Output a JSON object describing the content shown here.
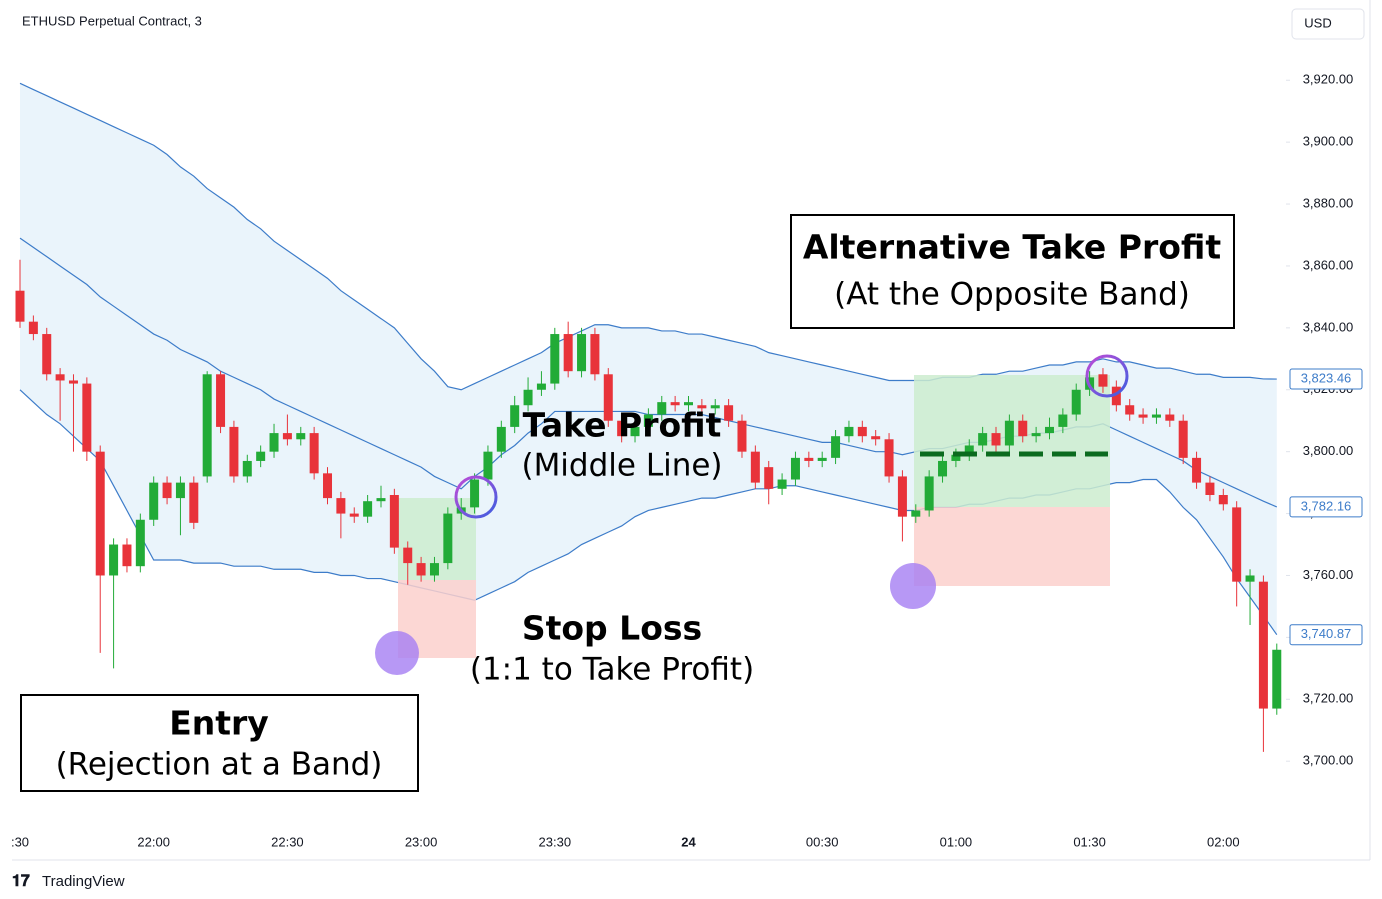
{
  "chart_data": {
    "type": "candlestick",
    "title": "ETHUSD Perpetual Contract, 3",
    "currency": "USD",
    "footer": "TradingView",
    "categories": [
      ":30",
      null,
      null,
      null,
      null,
      null,
      null,
      null,
      null,
      null,
      "22:00",
      null,
      null,
      null,
      null,
      null,
      null,
      null,
      null,
      null,
      "22:30",
      null,
      null,
      null,
      null,
      null,
      null,
      null,
      null,
      null,
      "23:00",
      null,
      null,
      null,
      null,
      null,
      null,
      null,
      null,
      null,
      "23:30",
      null,
      null,
      null,
      null,
      null,
      null,
      null,
      null,
      null,
      "24",
      null,
      null,
      null,
      null,
      null,
      null,
      null,
      null,
      null,
      "00:30",
      null,
      null,
      null,
      null,
      null,
      null,
      null,
      null,
      null,
      "01:00",
      null,
      null,
      null,
      null,
      null,
      null,
      null,
      null,
      null,
      "01:30",
      null,
      null,
      null,
      null,
      null,
      null,
      null,
      null,
      null,
      "02:00",
      null,
      null,
      null,
      null
    ],
    "open": [
      3852,
      3842,
      3838,
      3825,
      3823,
      3822,
      3800,
      3760,
      3770,
      3763,
      3778,
      3790,
      3785,
      3790,
      3792,
      3825,
      3808,
      3792,
      3797,
      3800,
      3806,
      3804,
      3806,
      3793,
      3785,
      3780,
      3779,
      3784,
      3786,
      3769,
      3764,
      3760,
      3764,
      3780,
      3782,
      3791,
      3800,
      3808,
      3815,
      3820,
      3822,
      3838,
      3826,
      3838,
      3825,
      3810,
      3805,
      3808,
      3812,
      3816,
      3815,
      3815,
      3814,
      3815,
      3810,
      3800,
      3795,
      3788,
      3791,
      3798,
      3797,
      3798,
      3805,
      3808,
      3805,
      3804,
      3792,
      3779,
      3781,
      3792,
      3797,
      3799,
      3802,
      3806,
      3802,
      3810,
      3805,
      3806,
      3808,
      3812,
      3820,
      3825,
      3821,
      3815,
      3812,
      3811,
      3812,
      3810,
      3798,
      3790,
      3786,
      3782,
      3758,
      3758,
      3717
    ],
    "high": [
      3862,
      3844,
      3840,
      3827,
      3825,
      3824,
      3802,
      3772,
      3772,
      3780,
      3792,
      3792,
      3792,
      3792,
      3826,
      3826,
      3810,
      3799,
      3802,
      3809,
      3812,
      3808,
      3808,
      3795,
      3787,
      3782,
      3786,
      3789,
      3788,
      3771,
      3766,
      3766,
      3782,
      3785,
      3793,
      3802,
      3810,
      3818,
      3824,
      3826,
      3840,
      3842,
      3840,
      3840,
      3827,
      3812,
      3810,
      3814,
      3818,
      3818,
      3818,
      3817,
      3817,
      3817,
      3812,
      3802,
      3797,
      3793,
      3800,
      3800,
      3800,
      3807,
      3810,
      3810,
      3807,
      3806,
      3794,
      3783,
      3794,
      3799,
      3801,
      3804,
      3808,
      3808,
      3812,
      3812,
      3808,
      3811,
      3814,
      3822,
      3826,
      3827,
      3823,
      3817,
      3814,
      3814,
      3814,
      3812,
      3800,
      3792,
      3788,
      3784,
      3762,
      3760,
      3738
    ],
    "low": [
      3840,
      3836,
      3823,
      3810,
      3800,
      3797,
      3735,
      3730,
      3761,
      3761,
      3776,
      3783,
      3773,
      3775,
      3790,
      3806,
      3790,
      3790,
      3795,
      3798,
      3802,
      3802,
      3791,
      3783,
      3772,
      3777,
      3777,
      3782,
      3767,
      3757,
      3758,
      3758,
      3762,
      3778,
      3780,
      3789,
      3798,
      3806,
      3813,
      3818,
      3820,
      3824,
      3824,
      3823,
      3808,
      3803,
      3803,
      3806,
      3810,
      3813,
      3813,
      3812,
      3812,
      3808,
      3798,
      3788,
      3783,
      3786,
      3789,
      3795,
      3795,
      3796,
      3803,
      3803,
      3802,
      3790,
      3771,
      3777,
      3779,
      3790,
      3795,
      3797,
      3800,
      3800,
      3800,
      3803,
      3803,
      3804,
      3806,
      3810,
      3818,
      3819,
      3813,
      3810,
      3809,
      3809,
      3808,
      3796,
      3788,
      3784,
      3781,
      3750,
      3744,
      3703,
      3715
    ],
    "close": [
      3842,
      3838,
      3825,
      3823,
      3822,
      3800,
      3760,
      3770,
      3763,
      3778,
      3790,
      3785,
      3790,
      3777,
      3825,
      3808,
      3792,
      3797,
      3800,
      3806,
      3804,
      3806,
      3793,
      3785,
      3780,
      3779,
      3784,
      3785,
      3769,
      3764,
      3760,
      3764,
      3780,
      3782,
      3791,
      3800,
      3808,
      3815,
      3820,
      3822,
      3838,
      3826,
      3838,
      3825,
      3810,
      3805,
      3808,
      3812,
      3816,
      3815,
      3816,
      3814,
      3815,
      3810,
      3800,
      3790,
      3788,
      3791,
      3798,
      3797,
      3798,
      3805,
      3808,
      3805,
      3804,
      3792,
      3779,
      3781,
      3792,
      3797,
      3799,
      3802,
      3806,
      3802,
      3810,
      3805,
      3806,
      3808,
      3812,
      3820,
      3824,
      3821,
      3815,
      3812,
      3811,
      3812,
      3810,
      3798,
      3790,
      3786,
      3783,
      3758,
      3760,
      3717,
      3736
    ],
    "up_color": "#22ab37",
    "down_color": "#e8333a",
    "series": [
      {
        "color": "#3d7cc9",
        "last_label": "3,823.46",
        "values": [
          3919,
          3917,
          3915,
          3913,
          3911,
          3909,
          3907,
          3905,
          3903,
          3901,
          3899,
          3896,
          3892,
          3889,
          3885,
          3882,
          3879,
          3875,
          3872,
          3868,
          3865,
          3862,
          3859,
          3856,
          3852,
          3849,
          3846,
          3843,
          3840,
          3835,
          3830,
          3826,
          3821,
          3820,
          3822,
          3824,
          3826,
          3828,
          3830,
          3832,
          3835,
          3837,
          3839,
          3841,
          3841,
          3840,
          3840,
          3840,
          3839,
          3839,
          3838,
          3838,
          3837,
          3836,
          3835,
          3834,
          3832,
          3831,
          3830,
          3829,
          3828,
          3827,
          3826,
          3825,
          3824,
          3823,
          3823,
          3823,
          3823,
          3824,
          3824,
          3824,
          3825,
          3825,
          3826,
          3826,
          3827,
          3828,
          3828,
          3829,
          3829,
          3830,
          3829,
          3829,
          3828,
          3827,
          3827,
          3826,
          3825,
          3825,
          3824,
          3824,
          3824,
          3823.5,
          3823.46
        ]
      },
      {
        "color": "#3d7cc9",
        "last_label": "3,782.16",
        "values": [
          3869,
          3866,
          3863,
          3860,
          3857,
          3854,
          3850,
          3847,
          3844,
          3841,
          3838,
          3836,
          3833,
          3831,
          3829,
          3826,
          3824,
          3822,
          3820,
          3817,
          3815,
          3813,
          3811,
          3809,
          3807,
          3805,
          3803,
          3801,
          3799,
          3797,
          3795,
          3792,
          3790,
          3788,
          3792,
          3795,
          3799,
          3802,
          3806,
          3809,
          3813,
          3813,
          3813,
          3813,
          3813,
          3813,
          3813,
          3812,
          3812,
          3812,
          3812,
          3812,
          3811,
          3810,
          3809,
          3808,
          3807,
          3806,
          3805,
          3804,
          3803,
          3803,
          3802,
          3801,
          3800,
          3800,
          3799,
          3800,
          3801,
          3801,
          3802,
          3803,
          3803,
          3804,
          3805,
          3805,
          3806,
          3806,
          3807,
          3808,
          3808,
          3809,
          3807,
          3805,
          3803,
          3801,
          3799,
          3797,
          3794,
          3792,
          3790,
          3788,
          3786,
          3784,
          3782.16
        ]
      },
      {
        "color": "#3d7cc9",
        "last_label": "3,740.87",
        "values": [
          3820,
          3816,
          3812,
          3809,
          3805,
          3801,
          3797,
          3789,
          3781,
          3773,
          3765,
          3765,
          3765,
          3764,
          3764,
          3764,
          3763,
          3763,
          3763,
          3762,
          3762,
          3762,
          3761,
          3761,
          3760,
          3760,
          3759,
          3759,
          3758,
          3757,
          3756,
          3755,
          3754,
          3753,
          3752,
          3754,
          3756,
          3758,
          3761,
          3763,
          3765,
          3767,
          3770,
          3772,
          3774,
          3776,
          3779,
          3781,
          3782,
          3783,
          3784,
          3785,
          3785,
          3786,
          3787,
          3788,
          3788,
          3789,
          3789,
          3788,
          3787,
          3786,
          3785,
          3784,
          3783,
          3782,
          3781,
          3781,
          3782,
          3782,
          3782,
          3783,
          3783,
          3784,
          3785,
          3785,
          3786,
          3786,
          3787,
          3788,
          3788,
          3789,
          3790,
          3790,
          3791,
          3791,
          3787,
          3782,
          3778,
          3772,
          3766,
          3759,
          3753,
          3747,
          3740.87
        ]
      }
    ],
    "ylim": [
      3681,
      3933
    ],
    "yticks": [
      {
        "value": 3700,
        "label": "3,700.00"
      },
      {
        "value": 3720,
        "label": "3,720.00"
      },
      {
        "value": 3740,
        "label": "3,740.00"
      },
      {
        "value": 3760,
        "label": "3,760.00"
      },
      {
        "value": 3780,
        "label": "3,780.00"
      },
      {
        "value": 3800,
        "label": "3,800.00"
      },
      {
        "value": 3820,
        "label": "3,820.00"
      },
      {
        "value": 3840,
        "label": "3,840.00"
      },
      {
        "value": 3860,
        "label": "3,860.00"
      },
      {
        "value": 3880,
        "label": "3,880.00"
      },
      {
        "value": 3900,
        "label": "3,900.00"
      },
      {
        "value": 3920,
        "label": "3,920.00"
      }
    ],
    "annotations": [
      {
        "lines": [
          "Alternative Take Profit",
          "(At the Opposite Band)"
        ]
      },
      {
        "lines": [
          "Take Profit",
          "(Middle Line)"
        ]
      },
      {
        "lines": [
          "Stop Loss",
          "(1:1 to Take Profit)"
        ]
      },
      {
        "lines": [
          "Entry",
          "(Rejection at a Band)"
        ]
      }
    ]
  }
}
